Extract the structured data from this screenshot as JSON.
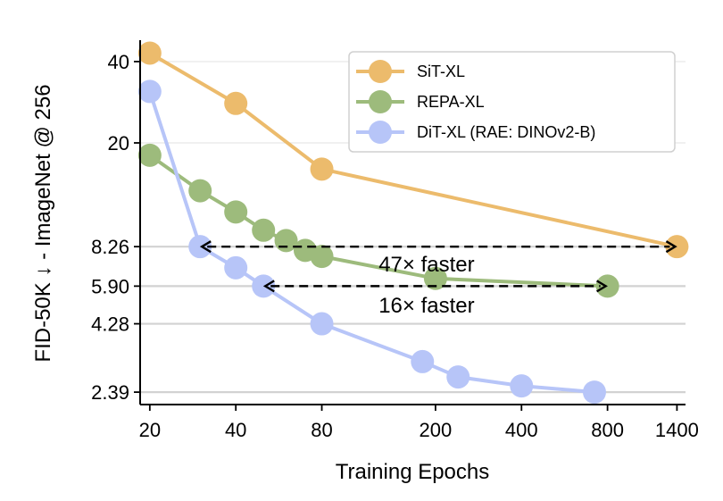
{
  "chart_data": {
    "type": "line",
    "xscale": "log",
    "yscale": "log",
    "xlabel": "Training Epochs",
    "ylabel": "FID-50K ↓ - ImageNet @ 256",
    "xlim": [
      18.5,
      1500
    ],
    "ylim": [
      2.15,
      48
    ],
    "xticks": [
      20,
      40,
      80,
      200,
      400,
      800,
      1400
    ],
    "xtick_labels": [
      "20",
      "40",
      "80",
      "200",
      "400",
      "800",
      "1400"
    ],
    "yticks": [
      2.39,
      4.28,
      5.9,
      8.26,
      20,
      40
    ],
    "ytick_labels": [
      "2.39",
      "4.28",
      "5.90",
      "8.26",
      "20",
      "40"
    ],
    "grid_lines": [
      2.39,
      4.28,
      5.9,
      8.26,
      20,
      40
    ],
    "legend_position": "top-right",
    "series": [
      {
        "name": "SiT-XL",
        "color": "#ecbb6c",
        "x": [
          20,
          40,
          80,
          1400
        ],
        "y": [
          43,
          28,
          16,
          8.26
        ]
      },
      {
        "name": "REPA-XL",
        "color": "#9dbb7c",
        "x": [
          20,
          30,
          40,
          50,
          60,
          70,
          80,
          200,
          800
        ],
        "y": [
          18,
          13.3,
          11.1,
          9.5,
          8.7,
          8.0,
          7.6,
          6.3,
          5.9
        ]
      },
      {
        "name": "DiT-XL (RAE: DINOv2-B)",
        "color": "#b7c5f8",
        "x": [
          20,
          30,
          40,
          50,
          80,
          180,
          240,
          400,
          720
        ],
        "y": [
          31,
          8.26,
          6.9,
          5.9,
          4.28,
          3.1,
          2.72,
          2.52,
          2.39
        ]
      }
    ],
    "annotations": [
      {
        "text": "47× faster",
        "from_x": 30,
        "to_x": 1400,
        "y": 8.26,
        "label_x": 200,
        "label_y": 7.1
      },
      {
        "text": "16× faster",
        "from_x": 50,
        "to_x": 800,
        "y": 5.9,
        "label_x": 200,
        "label_y": 5.0
      }
    ]
  }
}
